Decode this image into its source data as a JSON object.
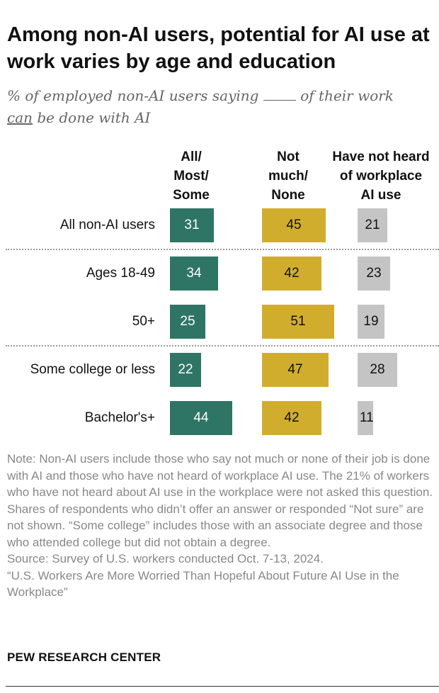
{
  "title": "Among non-AI users, potential for AI use at work varies by age and education",
  "subtitle": {
    "part1": "% of employed non-AI users saying",
    "part2": "of their work",
    "part3": "can",
    "part4": "be done with AI"
  },
  "chart_data": {
    "type": "bar",
    "orientation": "horizontal",
    "categories": [
      "All non-AI users",
      "Ages 18-49",
      "50+",
      "Some college or less",
      "Bachelor's+"
    ],
    "series": [
      {
        "name": "All/\nMost/\nSome",
        "color": "#2f7565",
        "values": [
          31,
          34,
          25,
          22,
          44
        ]
      },
      {
        "name": "Not\nmuch/\nNone",
        "color": "#d1ad2e",
        "values": [
          45,
          42,
          51,
          47,
          42
        ]
      },
      {
        "name": "Have not heard\nof workplace\nAI use",
        "color": "#c4c4c4",
        "values": [
          21,
          23,
          19,
          28,
          11
        ]
      }
    ],
    "groups": [
      "all",
      "age",
      "age",
      "education",
      "education"
    ]
  },
  "note": "Note: Non-AI users include those who say not much or none of their job is done with AI and those who have not heard of workplace AI use. The 21% of workers who have not heard about AI use in the workplace were not asked this question. Shares of respondents who didn’t offer an answer or responded “Not sure” are not shown. “Some college” includes those with an associate degree and those who attended college but did not obtain a degree.",
  "source": "Source: Survey of U.S. workers conducted Oct. 7-13, 2024.",
  "report": "“U.S. Workers Are More Worried Than Hopeful About Future AI Use in the Workplace”",
  "brand": "PEW RESEARCH CENTER"
}
